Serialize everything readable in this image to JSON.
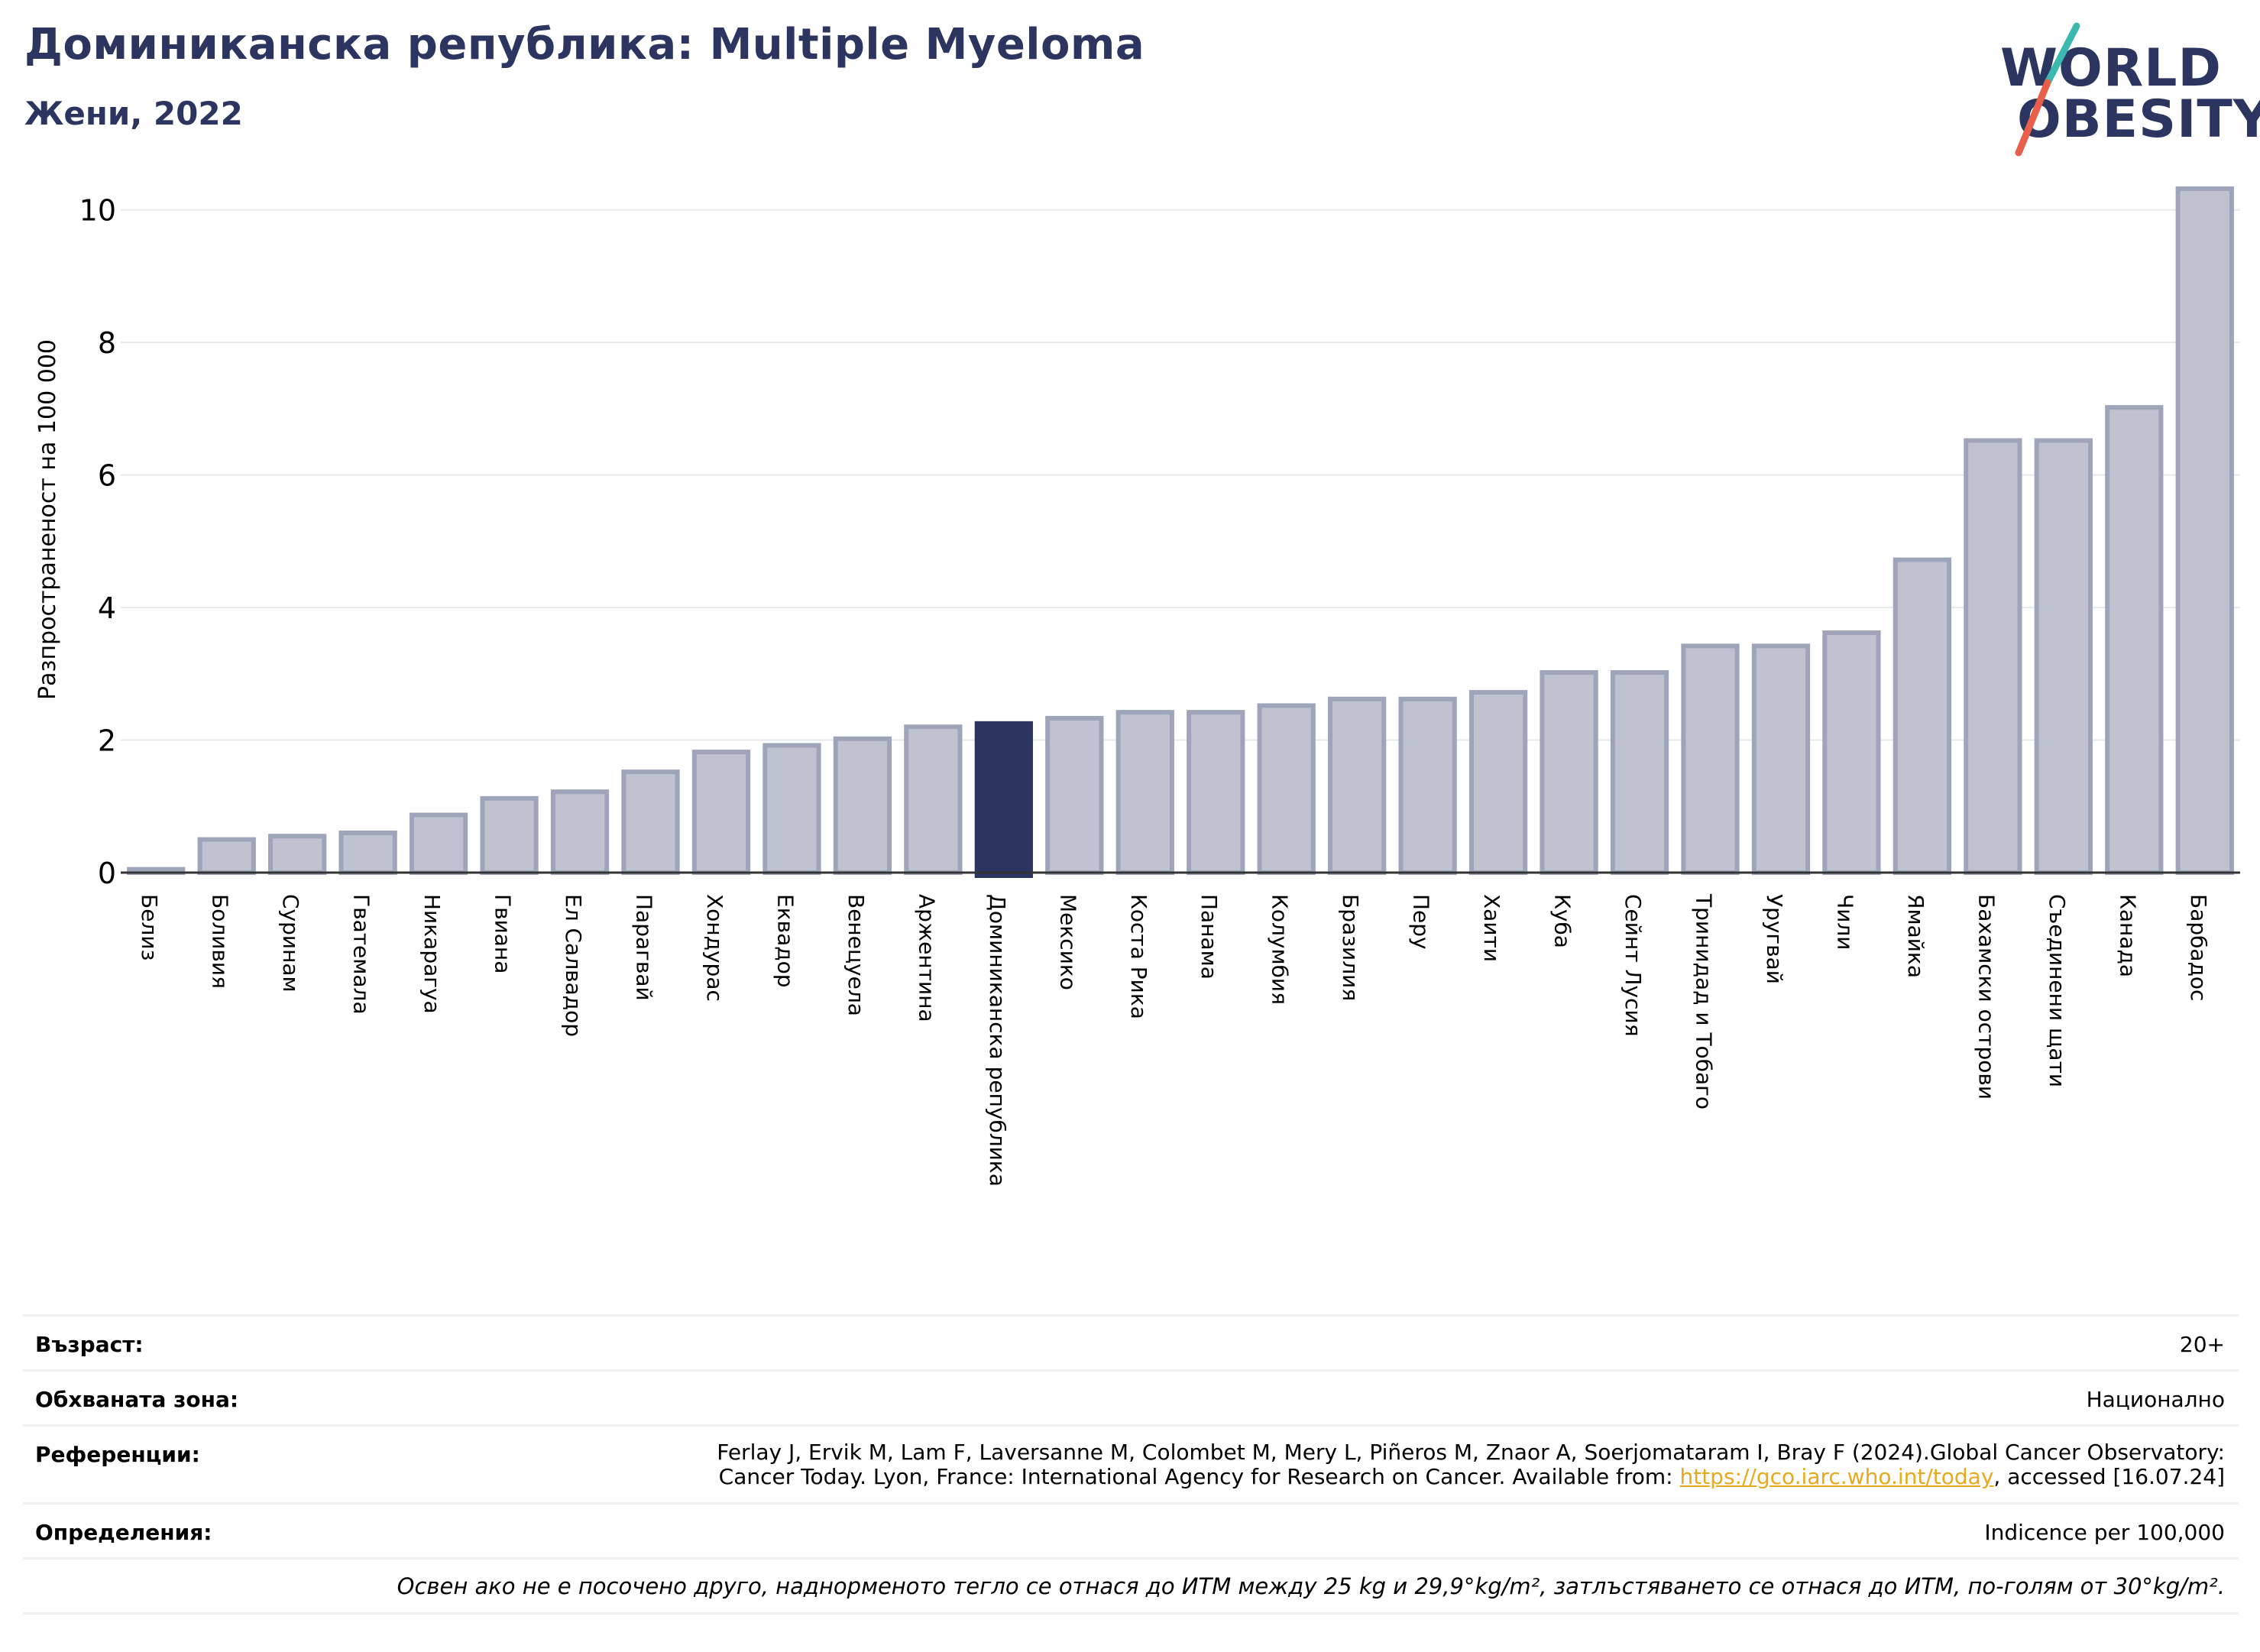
{
  "header": {
    "title": "Доминиканска република: Multiple Myeloma",
    "subtitle": "Жени, 2022"
  },
  "logo": {
    "line1": "WORLD",
    "line2": "OBESITY",
    "text_color": "#2b3560",
    "slash_top_color": "#3bb9b0",
    "slash_bottom_color": "#e8604c"
  },
  "chart_data": {
    "type": "bar",
    "ylabel": "Разпространеност  на 100 000",
    "ylim": [
      0,
      10.4
    ],
    "yticks": [
      0,
      2,
      4,
      6,
      8,
      10
    ],
    "grid": true,
    "highlight": "Доминиканска република",
    "highlight_color": "#2b3560",
    "bar_color": "#bfc3d0",
    "bar_edge_color": "#9ea4b9",
    "categories": [
      "Белиз",
      "Боливия",
      "Суринам",
      "Гватемала",
      "Никарагуа",
      "Гвиана",
      "Ел Салвадор",
      "Парагвай",
      "Хондурас",
      "Еквадор",
      "Венецуела",
      "Аржентина",
      "Доминиканска република",
      "Мексико",
      "Коста Рика",
      "Панама",
      "Колумбия",
      "Бразилия",
      "Перу",
      "Хаити",
      "Куба",
      "Сейнт Лусия",
      "Тринидад и Тобаго",
      "Уругвай",
      "Чили",
      "Ямайка",
      "Бахамски острови",
      "Съединени щати",
      "Канада",
      "Барбадос"
    ],
    "values": [
      0.05,
      0.5,
      0.55,
      0.6,
      0.87,
      1.12,
      1.22,
      1.52,
      1.82,
      1.92,
      2.02,
      2.2,
      2.25,
      2.33,
      2.42,
      2.42,
      2.52,
      2.62,
      2.62,
      2.72,
      3.02,
      3.02,
      3.42,
      3.42,
      3.62,
      4.72,
      6.52,
      6.52,
      7.02,
      10.32
    ]
  },
  "info": {
    "age_label": "Възраст:",
    "age_value": "20+",
    "area_label": "Обхваната зона:",
    "area_value": "Национално",
    "ref_label": "Референции:",
    "ref_line1": "Ferlay J, Ervik M, Lam F, Laversanne M, Colombet M, Mery L, Piñeros M, Znaor A, Soerjomataram I, Bray F (2024).Global Cancer Observatory:",
    "ref_line2_pre": "Cancer Today. Lyon, France: International Agency for Research on Cancer. Available from: ",
    "ref_link": "https://gco.iarc.who.int/today",
    "ref_line2_post": ", accessed [16.07.24]",
    "def_label": "Определения:",
    "def_value": "Indicence per 100,000",
    "note": "Освен ако не е посочено друго, наднорменото тегло се отнася до ИТМ между 25 kg и 29,9°kg/m², затлъстяването се отнася до ИТМ, по-голям от 30°kg/m²."
  }
}
